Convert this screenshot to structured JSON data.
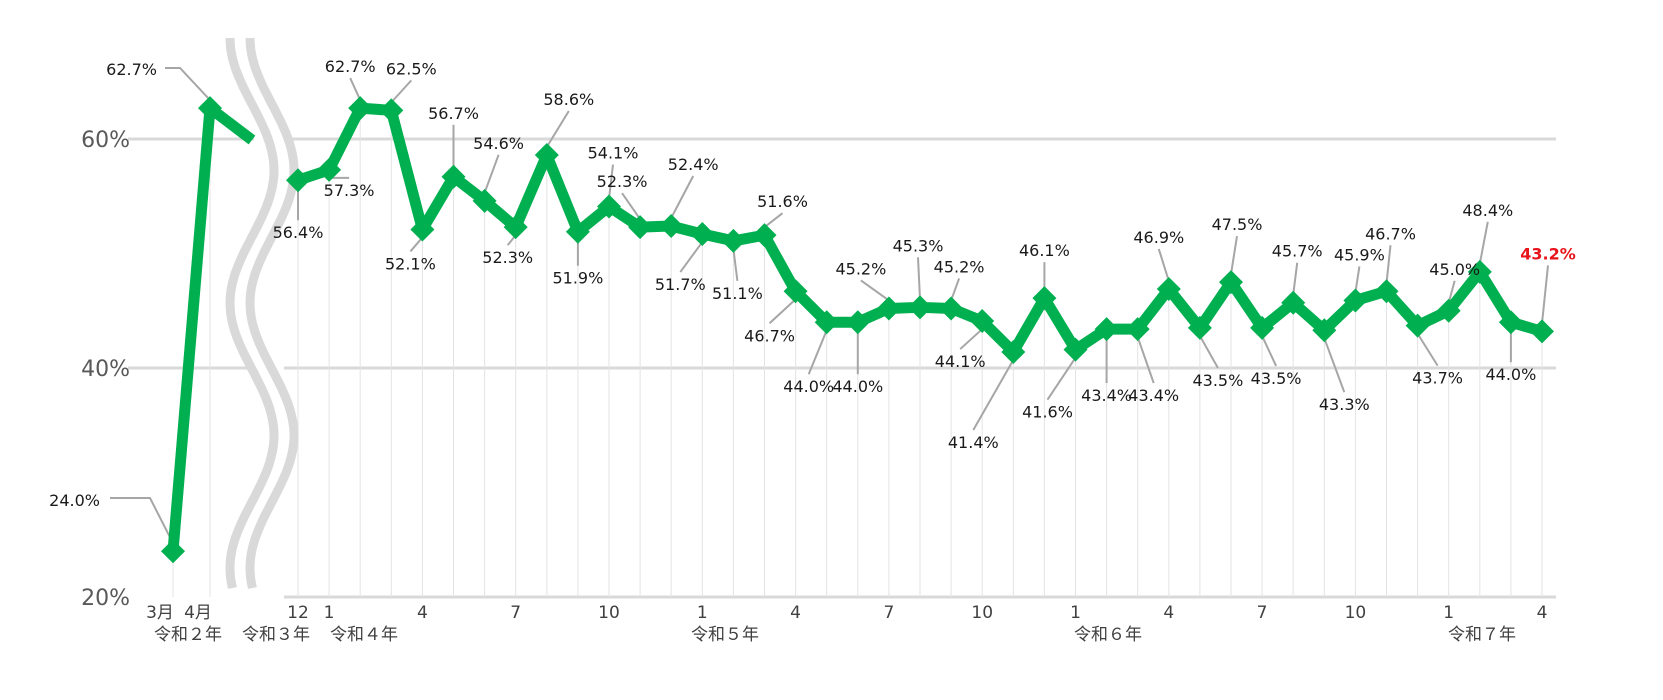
{
  "chart_data": {
    "type": "line",
    "ylim": [
      20,
      60
    ],
    "yticks": [
      "20%",
      "40%",
      "60%"
    ],
    "grid": true,
    "axis_break": true,
    "colors": {
      "line": "#00b050",
      "grid": "#d9d9d9",
      "break": "#d9d9d9",
      "highlight": "#e8141b"
    },
    "x_tick_labels": [
      "3月",
      "4月",
      "12",
      "1",
      "4",
      "7",
      "10",
      "1",
      "4",
      "7",
      "10",
      "1",
      "4",
      "7",
      "10",
      "1",
      "4"
    ],
    "x_era_labels": [
      "令和２年",
      "令和３年",
      "令和４年",
      "令和５年",
      "令和６年",
      "令和７年"
    ],
    "segment_pre_break": [
      {
        "x": "令和2年3月",
        "y": 24.0,
        "label": "24.0%"
      },
      {
        "x": "令和2年4月",
        "y": 62.7,
        "label": "62.7%"
      }
    ],
    "series": [
      {
        "values": [
          56.4,
          57.3,
          62.7,
          62.5,
          52.1,
          56.7,
          54.6,
          52.3,
          58.6,
          51.9,
          54.1,
          52.3,
          52.4,
          51.7,
          51.1,
          51.6,
          46.7,
          44.0,
          44.0,
          45.2,
          45.3,
          45.2,
          44.1,
          41.4,
          46.1,
          41.6,
          43.4,
          43.4,
          46.9,
          43.5,
          47.5,
          43.5,
          45.7,
          43.3,
          45.9,
          46.7,
          43.7,
          45.0,
          48.4,
          44.0,
          43.2
        ],
        "x_start": "令和3年12月",
        "x_end": "令和7年4月"
      }
    ],
    "data_labels": [
      "56.4%",
      "57.3%",
      "62.7%",
      "62.5%",
      "52.1%",
      "56.7%",
      "54.6%",
      "52.3%",
      "58.6%",
      "51.9%",
      "54.1%",
      "52.3%",
      "52.4%",
      "51.7%",
      "51.1%",
      "51.6%",
      "46.7%",
      "44.0%",
      "44.0%",
      "45.2%",
      "45.3%",
      "45.2%",
      "44.1%",
      "41.4%",
      "46.1%",
      "41.6%",
      "43.4%",
      "43.4%",
      "46.9%",
      "43.5%",
      "47.5%",
      "43.5%",
      "45.7%",
      "43.3%",
      "45.9%",
      "46.7%",
      "43.7%",
      "45.0%",
      "48.4%",
      "44.0%",
      "43.2%"
    ],
    "highlight_last": true
  }
}
